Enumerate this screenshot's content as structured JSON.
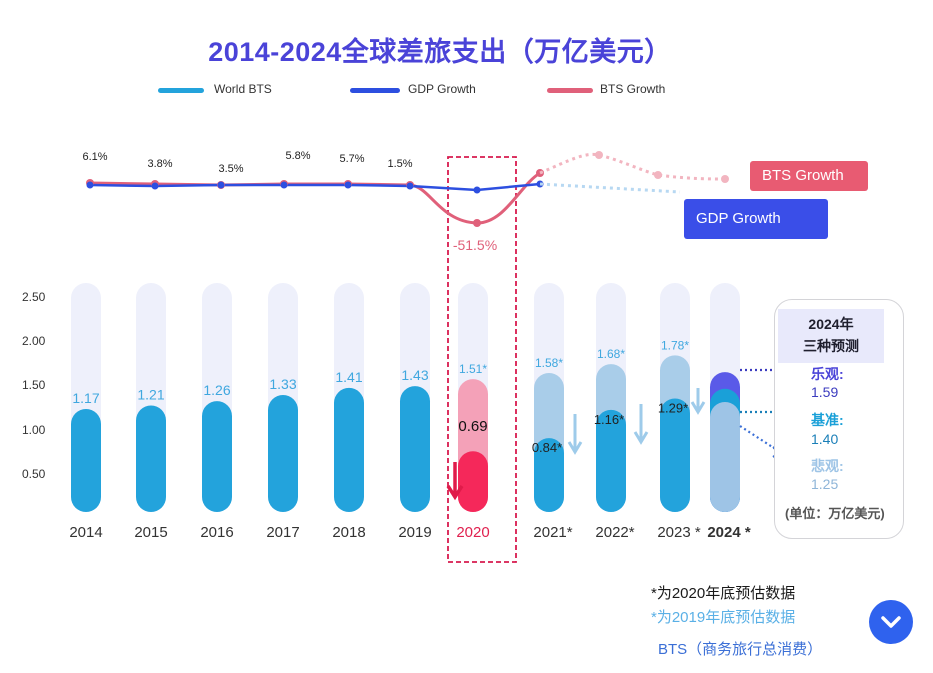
{
  "title": "2014-2024全球差旅支出（万亿美元）",
  "legend": {
    "world_bts": "World BTS",
    "gdp_growth": "GDP Growth",
    "bts_growth": "BTS Growth"
  },
  "colors": {
    "title": "#4a43d8",
    "bar": "#23a3dc",
    "bar_track": "#eef0fb",
    "bar_forecast": "#a9cde9",
    "bar_2020_actual": "#f5285a",
    "bar_2020_forecast": "#f4a1b8",
    "gdp_line": "#2d4fe0",
    "bts_line": "#e0607a",
    "highlight_box": "#d81b4f",
    "pill_bts": "#e85b72",
    "pill_gdp": "#3a4ee8",
    "optimistic": "#5a5ae8",
    "baseline": "#1aa0d8",
    "pessimistic": "#9ec4e6"
  },
  "chart_data": {
    "type": "bar",
    "categories": [
      "2014",
      "2015",
      "2016",
      "2017",
      "2018",
      "2019",
      "2020",
      "2021*",
      "2022*",
      "2023 *",
      "2024 *"
    ],
    "yticks": [
      "2.50",
      "2.00",
      "1.50",
      "1.00",
      "0.50"
    ],
    "ylim": [
      0,
      2.5
    ],
    "world_bts": [
      1.17,
      1.21,
      1.26,
      1.33,
      1.41,
      1.43,
      0.69,
      0.84,
      1.16,
      1.29,
      1.4
    ],
    "world_bts_labels": [
      "1.17",
      "1.21",
      "1.26",
      "1.33",
      "1.41",
      "1.43",
      "0.69",
      "0.84*",
      "1.16*",
      "1.29*",
      ""
    ],
    "pre_covid_forecast": [
      null,
      null,
      null,
      null,
      null,
      null,
      1.51,
      1.58,
      1.68,
      1.78,
      null
    ],
    "pre_covid_forecast_labels": [
      "",
      "",
      "",
      "",
      "",
      "",
      "1.51*",
      "1.58*",
      "1.68*",
      "1.78*",
      ""
    ],
    "bts_growth_labels": [
      "6.1%",
      "3.8%",
      "3.5%",
      "5.8%",
      "5.7%",
      "1.5%",
      "-51.5%"
    ],
    "growth_series": [
      {
        "name": "GDP Growth"
      },
      {
        "name": "BTS Growth"
      }
    ],
    "forecast_2024": {
      "title_line1": "2024年",
      "title_line2": "三种预测",
      "optimistic_label": "乐观:",
      "optimistic_value": "1.59",
      "baseline_label": "基准:",
      "baseline_value": "1.40",
      "pessimistic_label": "悲观:",
      "pessimistic_value": "1.25",
      "unit": "(单位：万亿美元)"
    }
  },
  "notes": {
    "note1": "*为2020年底预估数据",
    "note2": "*为2019年底预估数据",
    "note3": "BTS（商务旅行总消费）"
  },
  "pills": {
    "bts": "BTS Growth",
    "gdp": "GDP Growth"
  }
}
